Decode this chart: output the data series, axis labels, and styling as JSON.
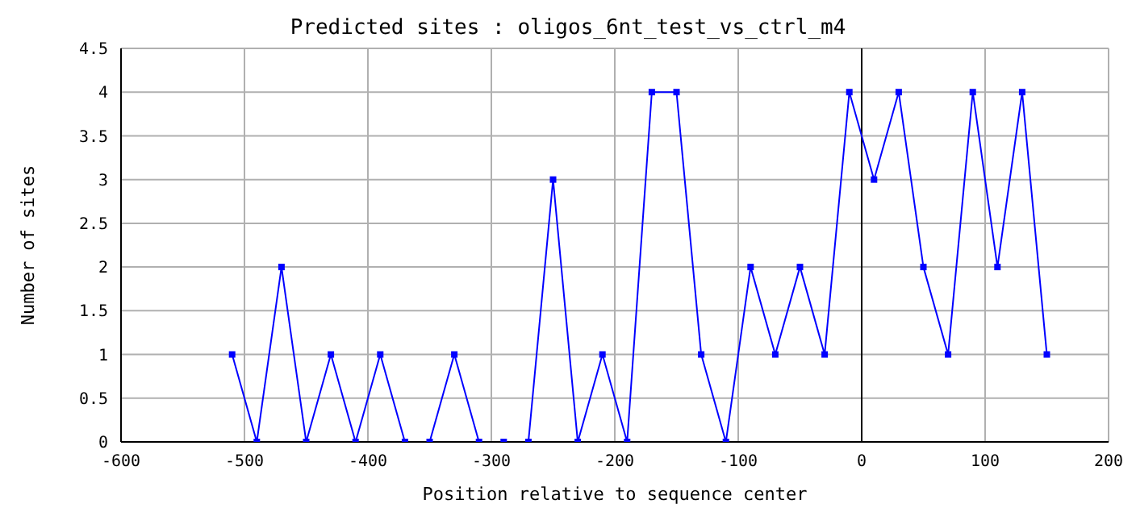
{
  "chart_data": {
    "type": "line",
    "title": "Predicted sites : oligos_6nt_test_vs_ctrl_m4",
    "xlabel": "Position relative to sequence center",
    "ylabel": "Number of sites",
    "x": [
      -510,
      -490,
      -470,
      -450,
      -430,
      -410,
      -390,
      -370,
      -350,
      -330,
      -310,
      -290,
      -270,
      -250,
      -230,
      -210,
      -190,
      -170,
      -150,
      -130,
      -110,
      -90,
      -70,
      -50,
      -30,
      -10,
      10,
      30,
      50,
      70,
      90,
      110,
      130,
      150
    ],
    "series": [
      {
        "color": "#0000ff",
        "values": [
          1,
          0,
          2,
          0,
          1,
          0,
          1,
          0,
          0,
          1,
          0,
          0,
          0,
          3,
          0,
          1,
          0,
          4,
          4,
          1,
          0,
          2,
          1,
          2,
          1,
          4,
          3,
          4,
          2,
          1,
          4,
          2,
          4,
          1
        ]
      }
    ],
    "xlim": [
      -600,
      200
    ],
    "xticks": [
      -600,
      -500,
      -400,
      -300,
      -200,
      -100,
      0,
      100,
      200
    ],
    "ylim": [
      0,
      4.5
    ],
    "yticks": [
      0,
      0.5,
      1,
      1.5,
      2,
      2.5,
      3,
      3.5,
      4,
      4.5
    ],
    "ref_lines": [
      {
        "axis": "x",
        "value": 0,
        "color": "#000000"
      }
    ],
    "grid": true,
    "marker": "square",
    "line_style": "solid",
    "legend": false
  }
}
